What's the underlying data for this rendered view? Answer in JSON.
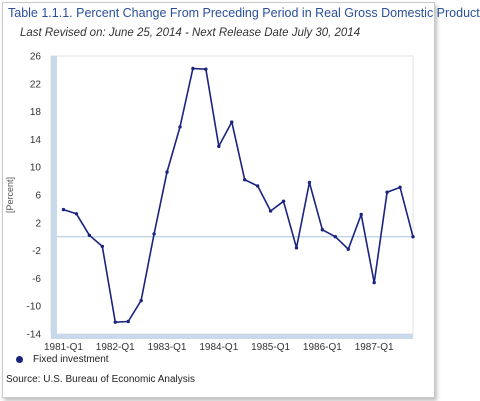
{
  "chart_data": {
    "type": "line",
    "title": "Table 1.1.1. Percent Change From Preceding Period in Real Gross Domestic Product",
    "subtitle": "Last Revised on: June 25, 2014 - Next Release Date July 30, 2014",
    "ylabel": "[Percent]",
    "xlabel": "",
    "ylim": [
      -14,
      26
    ],
    "yticks": [
      "26",
      "22",
      "18",
      "14",
      "10",
      "6",
      "2",
      "-2",
      "-6",
      "-10",
      "-14"
    ],
    "ytick_values": [
      26,
      22,
      18,
      14,
      10,
      6,
      2,
      -2,
      -6,
      -10,
      -14
    ],
    "xtick_labels": [
      "1981-Q1",
      "1982-Q1",
      "1983-Q1",
      "1984-Q1",
      "1985-Q1",
      "1986-Q1",
      "1987-Q1"
    ],
    "x": [
      "1981-Q1",
      "1981-Q2",
      "1981-Q3",
      "1981-Q4",
      "1982-Q1",
      "1982-Q2",
      "1982-Q3",
      "1982-Q4",
      "1983-Q1",
      "1983-Q2",
      "1983-Q3",
      "1983-Q4",
      "1984-Q1",
      "1984-Q2",
      "1984-Q3",
      "1984-Q4",
      "1985-Q1",
      "1985-Q2",
      "1985-Q3",
      "1985-Q4",
      "1986-Q1",
      "1986-Q2",
      "1986-Q3",
      "1986-Q4",
      "1987-Q1",
      "1987-Q2",
      "1987-Q3",
      "1987-Q4"
    ],
    "series": [
      {
        "name": "Fixed investment",
        "color": "#1a237e",
        "values": [
          3.9,
          3.3,
          0.2,
          -1.4,
          -12.3,
          -12.2,
          -9.2,
          0.4,
          9.3,
          15.8,
          24.2,
          24.1,
          13.0,
          16.5,
          8.2,
          7.3,
          3.7,
          5.1,
          -1.6,
          7.8,
          1.0,
          0.0,
          -1.8,
          3.2,
          -6.6,
          6.4,
          7.1,
          0.0
        ]
      }
    ],
    "grid": false,
    "zero_line": true,
    "legend_position": "bottom-left"
  },
  "legend": {
    "label": "Fixed investment"
  },
  "source": "Source: U.S. Bureau of Economic Analysis"
}
